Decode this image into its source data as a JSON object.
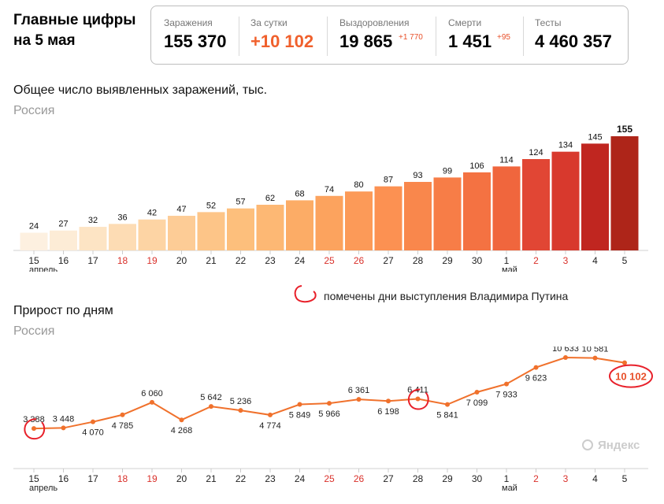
{
  "header": {
    "title_line1": "Главные цифры",
    "title_line2": "на 5 мая"
  },
  "stats": [
    {
      "label": "Заражения",
      "value": "155 370",
      "delta": ""
    },
    {
      "label": "За сутки",
      "value": "+10 102",
      "delta": ""
    },
    {
      "label": "Выздоровления",
      "value": "19 865",
      "delta": "+1 770"
    },
    {
      "label": "Смерти",
      "value": "1 451",
      "delta": "+95"
    },
    {
      "label": "Тесты",
      "value": "4 460 357",
      "delta": ""
    }
  ],
  "legend_text": "помечены дни выступления Владимира Путина",
  "watermark": "Яндекс",
  "colors": {
    "red_day": "#d9302a",
    "line": "#f0712c",
    "highlight_circle": "#e8202a"
  },
  "chart_data": [
    {
      "type": "bar",
      "title": "Общее число выявленных заражений, тыс.",
      "subtitle": "Россия",
      "categories": [
        "15",
        "16",
        "17",
        "18",
        "19",
        "20",
        "21",
        "22",
        "23",
        "24",
        "25",
        "26",
        "27",
        "28",
        "29",
        "30",
        "1",
        "2",
        "3",
        "4",
        "5"
      ],
      "month_labels": [
        {
          "index": 0,
          "text": "апрель"
        },
        {
          "index": 16,
          "text": "май"
        }
      ],
      "red_days": [
        "18",
        "19",
        "25",
        "26",
        "2",
        "3"
      ],
      "values": [
        24,
        27,
        32,
        36,
        42,
        47,
        52,
        57,
        62,
        68,
        74,
        80,
        87,
        93,
        99,
        106,
        114,
        124,
        134,
        145,
        155
      ],
      "value_labels": [
        "24",
        "27",
        "32",
        "36",
        "42",
        "47",
        "52",
        "57",
        "62",
        "68",
        "74",
        "80",
        "87",
        "93",
        "99",
        "106",
        "114",
        "124",
        "134",
        "145",
        "155"
      ],
      "bar_colors": [
        "#fdf0e0",
        "#fdecd6",
        "#fde4c4",
        "#fddcb4",
        "#fdd4a4",
        "#fdcc96",
        "#fdc588",
        "#fdbf7c",
        "#fdb874",
        "#fcac66",
        "#fca35e",
        "#fc9a58",
        "#fc9152",
        "#f9874c",
        "#f77d47",
        "#f47242",
        "#f0663d",
        "#e14634",
        "#d8392d",
        "#c02620",
        "#ae2519"
      ],
      "ylim": [
        0,
        155
      ]
    },
    {
      "type": "line",
      "title": "Прирост по дням",
      "subtitle": "Россия",
      "categories": [
        "15",
        "16",
        "17",
        "18",
        "19",
        "20",
        "21",
        "22",
        "23",
        "24",
        "25",
        "26",
        "27",
        "28",
        "29",
        "30",
        "1",
        "2",
        "3",
        "4",
        "5"
      ],
      "month_labels": [
        {
          "index": 0,
          "text": "апрель"
        },
        {
          "index": 16,
          "text": "май"
        }
      ],
      "red_days": [
        "18",
        "19",
        "25",
        "26",
        "2",
        "3"
      ],
      "values": [
        3388,
        3448,
        4070,
        4785,
        6060,
        4268,
        5642,
        5236,
        4774,
        5849,
        5966,
        6361,
        6198,
        6411,
        5841,
        7099,
        7933,
        9623,
        10633,
        10581,
        10102
      ],
      "value_labels": [
        "3 388",
        "3 448",
        "4 070",
        "4 785",
        "6 060",
        "4 268",
        "5 642",
        "5 236",
        "4 774",
        "5 849",
        "5 966",
        "6 361",
        "6 198",
        "6 411",
        "5 841",
        "7 099",
        "7 933",
        "9 623",
        "10 633",
        "10 581",
        "10 102"
      ],
      "highlighted_points": [
        "15",
        "28"
      ],
      "last_point_highlighted": "10 102",
      "ylim": [
        3000,
        11000
      ]
    }
  ]
}
